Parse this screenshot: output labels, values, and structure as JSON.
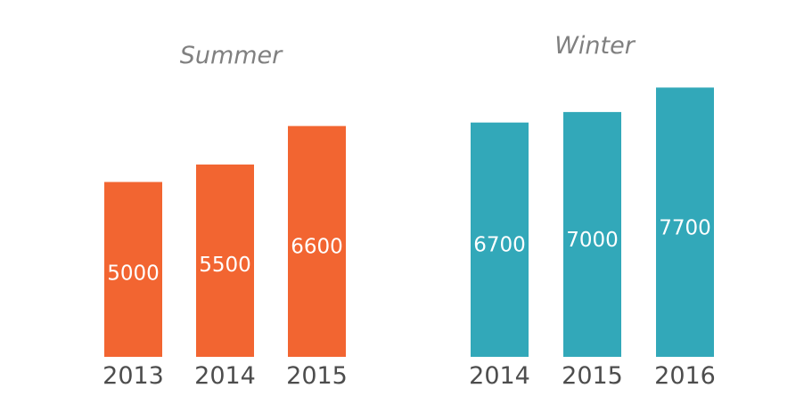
{
  "chart_data": [
    {
      "type": "bar",
      "title": "Summer",
      "categories": [
        "2013",
        "2014",
        "2015"
      ],
      "values": [
        5000,
        5500,
        6600
      ],
      "data_labels": [
        "5000",
        "5500",
        "6600"
      ],
      "color": "#F26531",
      "grid": false,
      "legend": "none"
    },
    {
      "type": "bar",
      "title": "Winter",
      "categories": [
        "2014",
        "2015",
        "2016"
      ],
      "values": [
        6700,
        7000,
        7700
      ],
      "data_labels": [
        "6700",
        "7000",
        "7700"
      ],
      "color": "#32A8B9",
      "grid": false,
      "legend": "none"
    }
  ]
}
